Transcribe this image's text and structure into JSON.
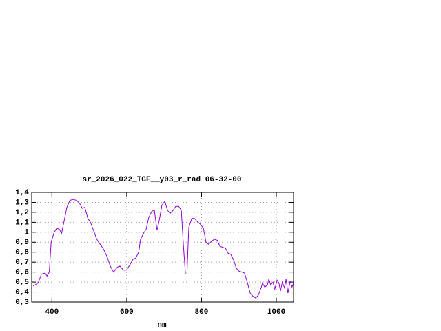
{
  "chart_data": {
    "type": "line",
    "title": "sr_2026_022_TGF__y03_r_rad 06-32-00",
    "x_label": "nm",
    "xlim": [
      346,
      1046
    ],
    "xticks": [
      400,
      600,
      800,
      1000
    ],
    "ylim": [
      0.3,
      1.4
    ],
    "yticks": [
      {
        "value": 0.3,
        "label": "0,3"
      },
      {
        "value": 0.4,
        "label": "0,4"
      },
      {
        "value": 0.5,
        "label": "0,5"
      },
      {
        "value": 0.6,
        "label": "0,6"
      },
      {
        "value": 0.7,
        "label": "0,7"
      },
      {
        "value": 0.8,
        "label": "0,8"
      },
      {
        "value": 0.9,
        "label": "0,9"
      },
      1,
      {
        "value": 1.1,
        "label": "1,1"
      },
      {
        "value": 1.2,
        "label": "1,2"
      },
      {
        "value": 1.3,
        "label": "1,3"
      },
      {
        "value": 1.4,
        "label": "1,4"
      }
    ],
    "grid": true,
    "x": [
      350,
      363,
      372,
      382,
      387,
      393,
      398,
      406,
      413,
      420,
      426,
      433,
      440,
      448,
      457,
      466,
      474,
      481,
      488,
      496,
      503,
      510,
      520,
      529,
      538,
      547,
      556,
      565,
      575,
      582,
      591,
      599,
      608,
      617,
      624,
      632,
      637,
      645,
      652,
      659,
      667,
      674,
      681,
      687,
      694,
      702,
      709,
      716,
      724,
      731,
      739,
      746,
      751,
      757,
      761,
      766,
      774,
      781,
      788,
      797,
      805,
      812,
      819,
      827,
      834,
      842,
      849,
      856,
      864,
      871,
      878,
      886,
      893,
      900,
      908,
      915,
      923,
      930,
      937,
      945,
      952,
      960,
      963,
      969,
      976,
      980,
      985,
      991,
      996,
      1002,
      1007,
      1011,
      1016,
      1022,
      1026,
      1031,
      1037,
      1042,
      1046
    ],
    "series": [
      {
        "color": "#9400d3",
        "values": [
          0.46,
          0.49,
          0.58,
          0.59,
          0.56,
          0.6,
          0.9,
          1.0,
          1.04,
          1.03,
          0.99,
          1.12,
          1.25,
          1.32,
          1.33,
          1.32,
          1.29,
          1.24,
          1.25,
          1.14,
          1.1,
          1.03,
          0.93,
          0.88,
          0.83,
          0.76,
          0.66,
          0.6,
          0.65,
          0.66,
          0.62,
          0.62,
          0.67,
          0.73,
          0.74,
          0.8,
          0.93,
          0.99,
          1.03,
          1.15,
          1.21,
          1.22,
          1.02,
          1.12,
          1.27,
          1.31,
          1.22,
          1.19,
          1.22,
          1.26,
          1.26,
          1.22,
          0.9,
          0.58,
          0.58,
          1.05,
          1.14,
          1.14,
          1.11,
          1.08,
          1.04,
          0.9,
          0.88,
          0.91,
          0.93,
          0.92,
          0.86,
          0.85,
          0.84,
          0.79,
          0.78,
          0.72,
          0.64,
          0.61,
          0.6,
          0.59,
          0.49,
          0.39,
          0.36,
          0.34,
          0.37,
          0.45,
          0.49,
          0.45,
          0.47,
          0.53,
          0.47,
          0.5,
          0.43,
          0.52,
          0.49,
          0.41,
          0.5,
          0.44,
          0.53,
          0.39,
          0.51,
          0.45,
          0.49
        ]
      }
    ]
  }
}
